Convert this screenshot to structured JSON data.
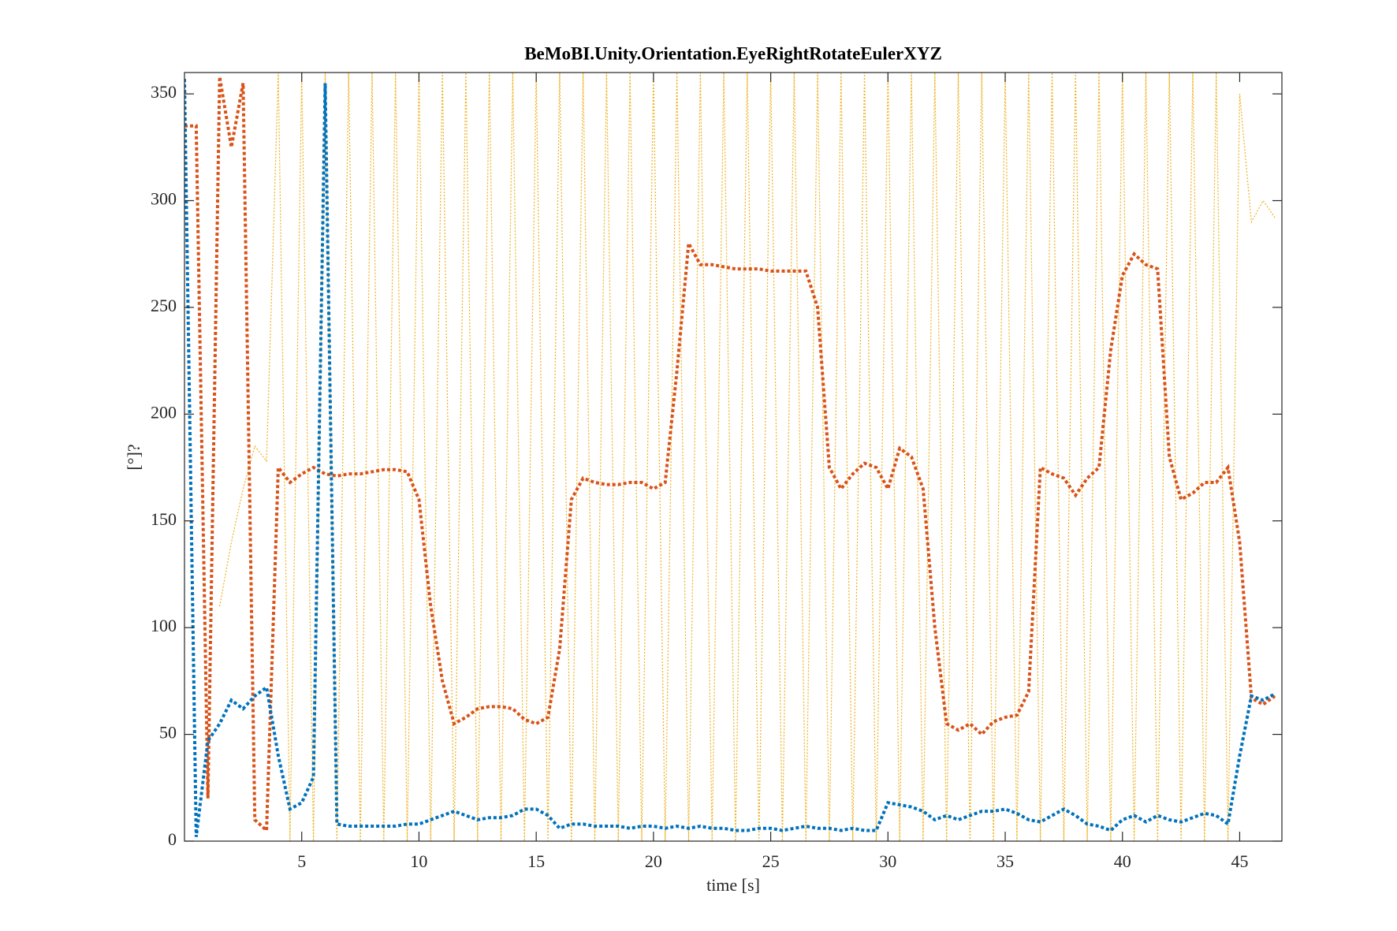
{
  "chart_data": {
    "type": "line",
    "title": "BeMoBI.Unity.Orientation.EyeRightRotateEulerXYZ",
    "x_label": "time [s]",
    "y_label": "[°]?",
    "x": [
      0,
      0.5,
      1,
      1.5,
      2,
      2.5,
      3,
      3.5,
      4,
      4.5,
      5,
      5.5,
      6,
      6.5,
      7,
      7.5,
      8,
      8.5,
      9,
      9.5,
      10,
      10.5,
      11,
      11.5,
      12,
      12.5,
      13,
      13.5,
      14,
      14.5,
      15,
      15.5,
      16,
      16.5,
      17,
      17.5,
      18,
      18.5,
      19,
      19.5,
      20,
      20.5,
      21,
      21.5,
      22,
      22.5,
      23,
      23.5,
      24,
      24.5,
      25,
      25.5,
      26,
      26.5,
      27,
      27.5,
      28,
      28.5,
      29,
      29.5,
      30,
      30.5,
      31,
      31.5,
      32,
      32.5,
      33,
      33.5,
      34,
      34.5,
      35,
      35.5,
      36,
      36.5,
      37,
      37.5,
      38,
      38.5,
      39,
      39.5,
      40,
      40.5,
      41,
      41.5,
      42,
      42.5,
      43,
      43.5,
      44,
      44.5,
      45,
      45.5,
      46,
      46.5
    ],
    "series": [
      {
        "color": "#EDB120",
        "width": 1.2,
        "dash": "2 2",
        "values": [
          null,
          null,
          null,
          110,
          140,
          165,
          185,
          178,
          360,
          0,
          360,
          0,
          360,
          0,
          360,
          0,
          360,
          0,
          360,
          0,
          360,
          0,
          360,
          0,
          360,
          0,
          360,
          0,
          360,
          0,
          360,
          0,
          360,
          0,
          360,
          0,
          360,
          0,
          360,
          0,
          360,
          0,
          360,
          0,
          360,
          0,
          360,
          0,
          360,
          0,
          360,
          0,
          360,
          0,
          360,
          0,
          360,
          0,
          360,
          0,
          360,
          0,
          360,
          0,
          360,
          0,
          360,
          0,
          360,
          0,
          360,
          0,
          360,
          0,
          360,
          0,
          360,
          0,
          360,
          0,
          360,
          0,
          360,
          0,
          360,
          0,
          360,
          0,
          360,
          0,
          350,
          290,
          300,
          292
        ]
      },
      {
        "color": "#D95319",
        "width": 4,
        "dash": "4 3",
        "values": [
          335,
          335,
          20,
          358,
          325,
          355,
          10,
          5,
          175,
          168,
          172,
          175,
          172,
          171,
          172,
          172,
          173,
          174,
          174,
          173,
          160,
          110,
          75,
          55,
          58,
          62,
          63,
          63,
          62,
          57,
          55,
          58,
          90,
          160,
          170,
          168,
          167,
          167,
          168,
          168,
          165,
          168,
          220,
          280,
          270,
          270,
          269,
          268,
          268,
          268,
          267,
          267,
          267,
          267,
          250,
          175,
          165,
          172,
          177,
          175,
          165,
          184,
          180,
          165,
          100,
          55,
          52,
          55,
          50,
          56,
          58,
          59,
          70,
          175,
          172,
          170,
          162,
          170,
          175,
          230,
          265,
          275,
          270,
          268,
          180,
          160,
          163,
          168,
          168,
          175,
          140,
          67,
          64,
          68
        ]
      },
      {
        "color": "#0072BD",
        "width": 4,
        "dash": "4 3",
        "values": [
          357,
          2,
          47,
          55,
          66,
          62,
          68,
          72,
          40,
          15,
          18,
          30,
          355,
          8,
          7,
          7,
          7,
          7,
          7,
          8,
          8,
          10,
          12,
          14,
          12,
          10,
          11,
          11,
          12,
          15,
          15,
          12,
          6,
          8,
          8,
          7,
          7,
          7,
          6,
          7,
          7,
          6,
          7,
          6,
          7,
          6,
          6,
          5,
          5,
          6,
          6,
          5,
          6,
          7,
          6,
          6,
          5,
          6,
          5,
          5,
          18,
          17,
          16,
          14,
          10,
          12,
          10,
          12,
          14,
          14,
          15,
          13,
          10,
          9,
          12,
          15,
          12,
          8,
          7,
          5,
          10,
          12,
          9,
          12,
          10,
          9,
          11,
          13,
          12,
          8,
          40,
          68,
          66,
          69
        ]
      }
    ],
    "xlim": [
      0,
      46.8
    ],
    "ylim": [
      0,
      360
    ],
    "xticks": [
      5,
      10,
      15,
      20,
      25,
      30,
      35,
      40,
      45
    ],
    "yticks": [
      0,
      50,
      100,
      150,
      200,
      250,
      300,
      350
    ],
    "box": true
  }
}
